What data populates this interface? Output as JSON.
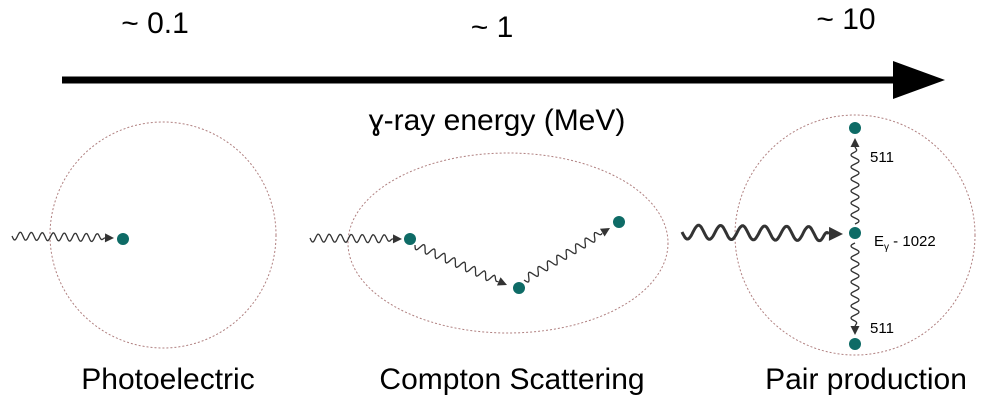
{
  "header": {
    "low": "~ 0.1",
    "mid": "~ 1",
    "high": "~ 10",
    "axis_label": "ɣ-ray energy (MeV)"
  },
  "processes": [
    {
      "label": "Photoelectric"
    },
    {
      "label": "Compton Scattering"
    },
    {
      "label": "Pair production",
      "upper": "511",
      "lower": "511",
      "energy_main": "E",
      "energy_sub": "γ",
      "energy_rest": " - 1022"
    }
  ]
}
